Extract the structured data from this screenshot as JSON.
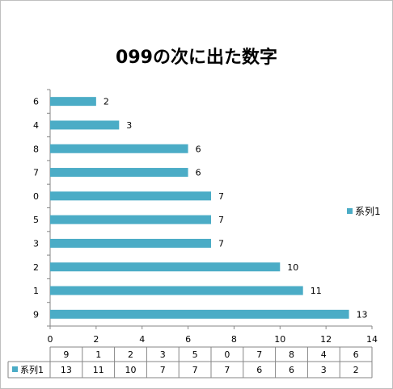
{
  "chart_data": {
    "type": "bar",
    "orientation": "horizontal",
    "title": "099の次に出た数字",
    "categories": [
      "9",
      "1",
      "2",
      "3",
      "5",
      "0",
      "7",
      "8",
      "4",
      "6"
    ],
    "series": [
      {
        "name": "系列1",
        "values": [
          13,
          11,
          10,
          7,
          7,
          7,
          6,
          6,
          3,
          2
        ]
      }
    ],
    "value_axis": {
      "min": 0,
      "max": 14,
      "step": 2,
      "ticks": [
        "0",
        "2",
        "4",
        "6",
        "8",
        "10",
        "12",
        "14"
      ]
    },
    "data_labels": true,
    "grid": false,
    "legend_position": "right",
    "data_table": true,
    "colors": {
      "bar": "#4bacc6",
      "axis": "#868686",
      "table_border": "#868686"
    }
  }
}
